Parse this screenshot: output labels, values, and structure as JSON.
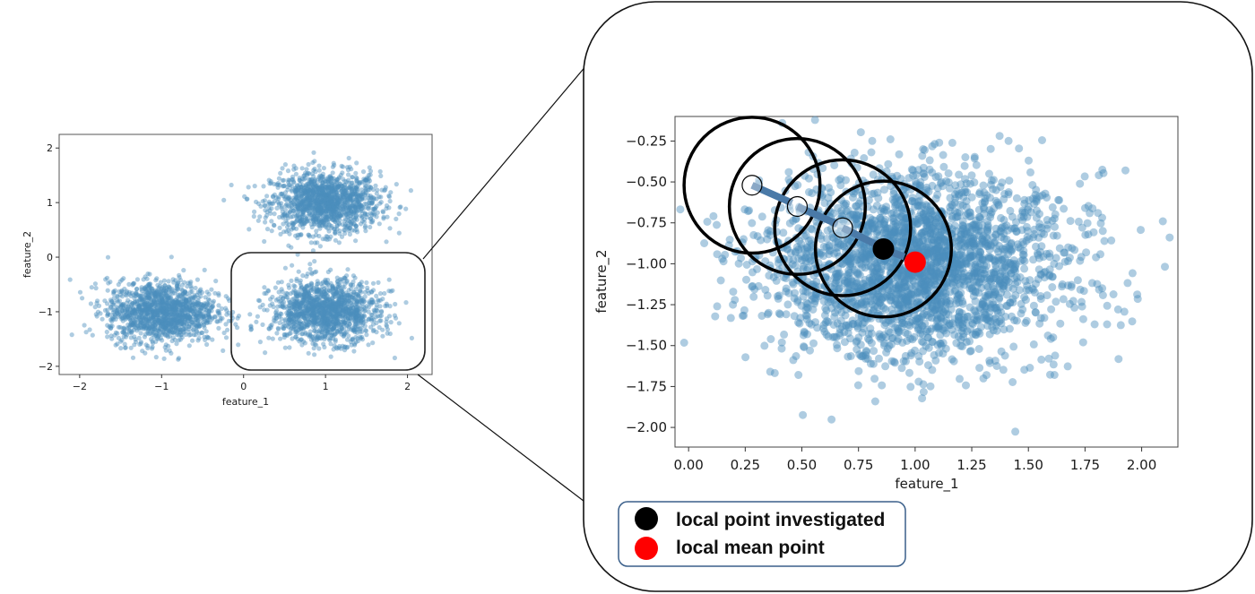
{
  "chart_data": [
    {
      "type": "scatter",
      "xlabel": "feature_1",
      "ylabel": "feature_2",
      "xlim": [
        -2.25,
        2.3
      ],
      "ylim": [
        -2.15,
        2.25
      ],
      "xticks": [
        "−2",
        "−1",
        "0",
        "1",
        "2"
      ],
      "yticks": [
        "−2",
        "−1",
        "0",
        "1",
        "2"
      ],
      "grid": false,
      "series": [
        {
          "points_description_centers": [
            [
              1.0,
              1.0
            ],
            [
              -1.0,
              -1.0
            ],
            [
              1.0,
              -1.0
            ]
          ],
          "point_color": "#4c8ebd"
        }
      ]
    },
    {
      "type": "scatter",
      "xlabel": "feature_1",
      "ylabel": "feature_2",
      "xlim": [
        -0.06,
        2.16
      ],
      "ylim": [
        -2.12,
        -0.1
      ],
      "xticks": [
        "0.00",
        "0.25",
        "0.50",
        "0.75",
        "1.00",
        "1.25",
        "1.50",
        "1.75",
        "2.00"
      ],
      "yticks": [
        "−0.25",
        "−0.50",
        "−0.75",
        "−1.00",
        "−1.25",
        "−1.50",
        "−1.75",
        "−2.00"
      ],
      "grid": false,
      "cluster_center": [
        1.0,
        -1.0
      ],
      "point_color": "#4c8ebd",
      "mean_shift_path": [
        {
          "x": 0.28,
          "y": -0.52,
          "window_radius": 0.3
        },
        {
          "x": 0.48,
          "y": -0.65,
          "window_radius": 0.3
        },
        {
          "x": 0.68,
          "y": -0.78,
          "window_radius": 0.3
        },
        {
          "x": 0.86,
          "y": -0.91,
          "window_radius": 0.3
        }
      ],
      "local_point_investigated": {
        "x": 0.86,
        "y": -0.91,
        "color": "#000000"
      },
      "local_mean_point": {
        "x": 1.0,
        "y": -0.99,
        "color": "#ff0000"
      },
      "legend": [
        {
          "label": "local point investigated",
          "color": "#000000"
        },
        {
          "label": "local mean point",
          "color": "#ff0000"
        }
      ]
    }
  ]
}
